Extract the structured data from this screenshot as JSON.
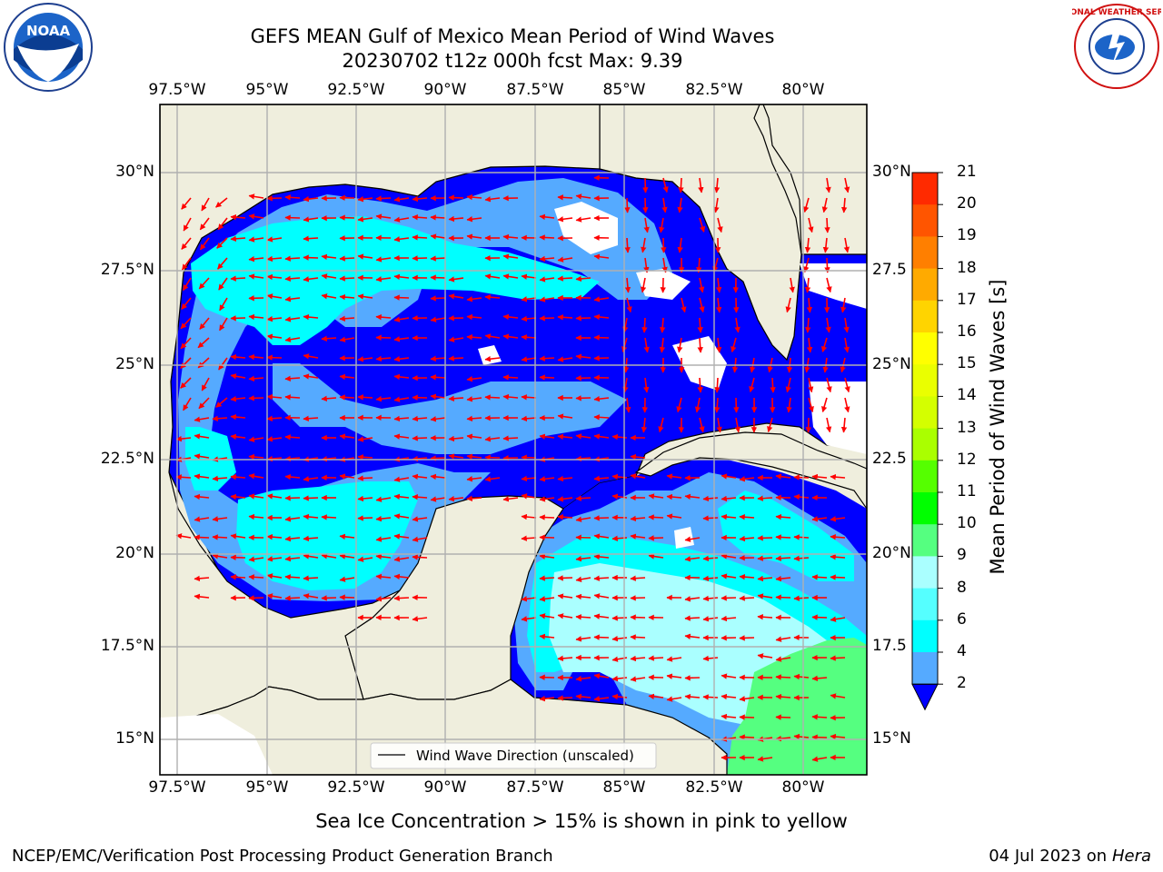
{
  "title": {
    "line1": "GEFS MEAN Gulf of Mexico Mean Period of Wind Waves",
    "line2": "20230702 t12z 000h fcst   Max: 9.39"
  },
  "map": {
    "lon_ticks": [
      "97.5°W",
      "95°W",
      "92.5°W",
      "90°W",
      "87.5°W",
      "85°W",
      "82.5°W",
      "80°W"
    ],
    "lat_ticks_left": [
      "30°N",
      "27.5°N",
      "25°N",
      "22.5°N",
      "20°N",
      "17.5°N",
      "15°N"
    ],
    "lat_ticks_right": [
      "30°N",
      "27.5",
      "25°N",
      "22.5",
      "20°N",
      "17.5",
      "15°N"
    ],
    "legend_label": "Wind Wave Direction (unscaled)",
    "colors": {
      "land": "#efeedd",
      "arrow": "#ff0000",
      "grid": "#b0b0b0"
    }
  },
  "colorbar": {
    "label": "Mean Period of Wind Waves [s]",
    "ticks": [
      "21",
      "20",
      "19",
      "18",
      "17",
      "16",
      "15",
      "14",
      "13",
      "12",
      "11",
      "10",
      "9",
      "8",
      "6",
      "4",
      "2"
    ],
    "colors": [
      "#ff0000",
      "#ff2a00",
      "#ff5500",
      "#ff7f00",
      "#ffaa00",
      "#ffd400",
      "#ffff00",
      "#eaff00",
      "#d4ff00",
      "#aaff00",
      "#55ff00",
      "#00ff00",
      "#55ff80",
      "#aaffff",
      "#55ffff",
      "#00ffff",
      "#55aaff",
      "#0000ff"
    ]
  },
  "chart_data": {
    "type": "heatmap",
    "title": "GEFS MEAN Gulf of Mexico Mean Period of Wind Waves",
    "subtitle": "20230702 t12z 000h fcst   Max: 9.39",
    "variable": "Mean Period of Wind Waves [s]",
    "max": 9.39,
    "xlim": [
      -98,
      -78
    ],
    "ylim": [
      14,
      32
    ],
    "colorbar_levels": [
      2,
      4,
      6,
      8,
      9,
      10,
      11,
      12,
      13,
      14,
      15,
      16,
      17,
      18,
      19,
      20,
      21
    ]
  },
  "note": "Sea Ice Concentration > 15% is shown in pink to yellow",
  "footer": {
    "left": "NCEP/EMC/Verification Post Processing Product Generation Branch",
    "date": "04 Jul 2023 on ",
    "host": "Hera"
  },
  "logos": {
    "noaa_text": "NOAA",
    "nws_text": "NATIONAL WEATHER SERVICE"
  }
}
